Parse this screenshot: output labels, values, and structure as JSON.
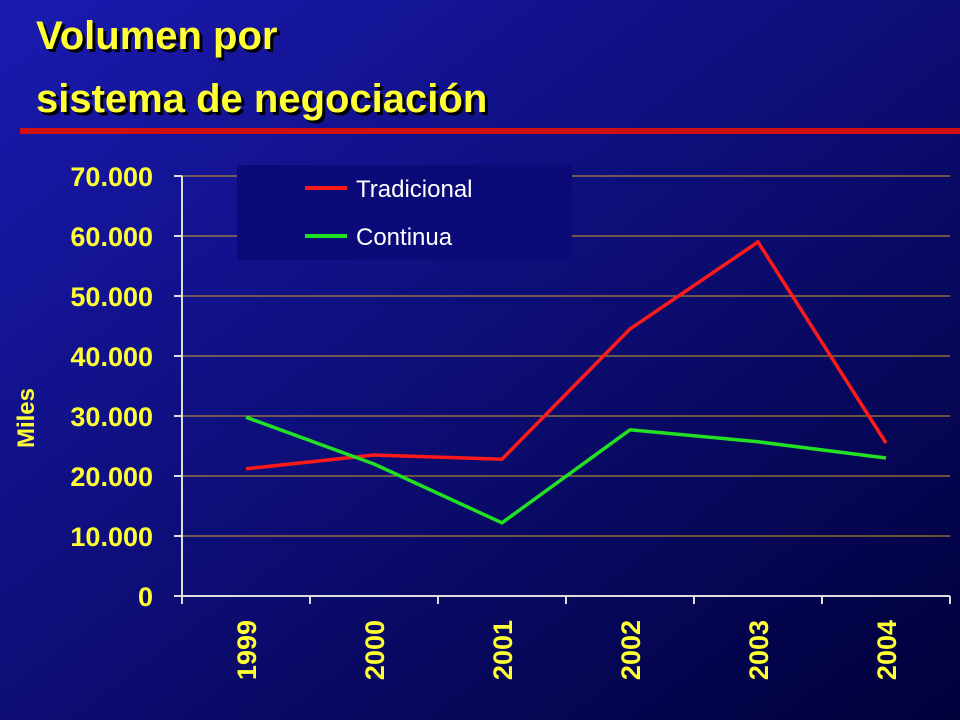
{
  "chart_data": {
    "type": "line",
    "title": [
      "Volumen por",
      "sistema de negociación"
    ],
    "y_label": "Miles",
    "categories": [
      "1999",
      "2000",
      "2001",
      "2002",
      "2003",
      "2004"
    ],
    "series": [
      {
        "name": "Tradicional",
        "color": "#ff1a1a",
        "values": [
          21200,
          23500,
          22800,
          44500,
          59000,
          25500
        ]
      },
      {
        "name": "Continua",
        "color": "#22e022",
        "values": [
          29800,
          22000,
          12200,
          27700,
          25700,
          23000
        ]
      }
    ],
    "ylim": [
      0,
      70000
    ],
    "yticks": [
      0,
      {
        "value": 10000,
        "label": "10.000"
      },
      {
        "value": 20000,
        "label": "20.000"
      },
      {
        "value": 30000,
        "label": "30.000"
      },
      {
        "value": 40000,
        "label": "40.000"
      },
      {
        "value": 50000,
        "label": "50.000"
      },
      {
        "value": 60000,
        "label": "60.000"
      },
      {
        "value": 70000,
        "label": "70.000"
      }
    ],
    "grid": true
  }
}
